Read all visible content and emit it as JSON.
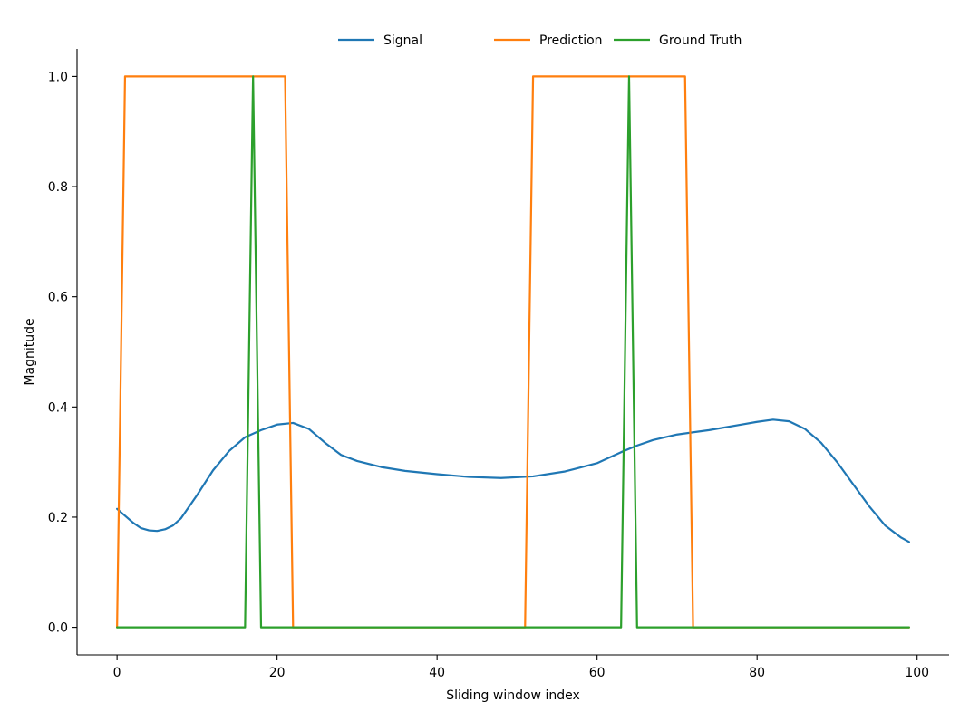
{
  "chart_data": {
    "type": "line",
    "title": "",
    "xlabel": "Sliding window index",
    "ylabel": "Magnitude",
    "xlim": [
      -5,
      104
    ],
    "ylim": [
      -0.05,
      1.05
    ],
    "x_ticks": [
      0,
      20,
      40,
      60,
      80,
      100
    ],
    "x_tick_labels": [
      "0",
      "20",
      "40",
      "60",
      "80",
      "100"
    ],
    "y_ticks": [
      0.0,
      0.2,
      0.4,
      0.6,
      0.8,
      1.0
    ],
    "y_tick_labels": [
      "0.0",
      "0.2",
      "0.4",
      "0.6",
      "0.8",
      "1.0"
    ],
    "grid": false,
    "legend": {
      "placement": "top-center",
      "columns": 3
    },
    "series": [
      {
        "name": "Signal",
        "color": "#1f77b4",
        "x": [
          0,
          2,
          3,
          4,
          5,
          6,
          7,
          8,
          10,
          12,
          14,
          16,
          18,
          20,
          22,
          24,
          26,
          28,
          30,
          33,
          36,
          40,
          44,
          48,
          52,
          56,
          60,
          63,
          65,
          67,
          70,
          74,
          78,
          80,
          82,
          84,
          86,
          88,
          90,
          92,
          94,
          96,
          98,
          99
        ],
        "y": [
          0.215,
          0.19,
          0.18,
          0.176,
          0.175,
          0.178,
          0.185,
          0.198,
          0.24,
          0.285,
          0.32,
          0.345,
          0.358,
          0.368,
          0.371,
          0.36,
          0.335,
          0.313,
          0.302,
          0.291,
          0.284,
          0.278,
          0.273,
          0.271,
          0.274,
          0.283,
          0.298,
          0.318,
          0.33,
          0.34,
          0.35,
          0.358,
          0.368,
          0.373,
          0.377,
          0.374,
          0.36,
          0.335,
          0.3,
          0.26,
          0.22,
          0.185,
          0.163,
          0.155
        ]
      },
      {
        "name": "Prediction",
        "color": "#ff7f0e",
        "x": [
          0,
          1,
          21,
          22,
          51,
          52,
          71,
          72,
          99
        ],
        "y": [
          0,
          1,
          1,
          0,
          0,
          1,
          1,
          0,
          0
        ]
      },
      {
        "name": "Ground Truth",
        "color": "#2ca02c",
        "x": [
          0,
          16,
          17,
          18,
          63,
          64,
          65,
          99
        ],
        "y": [
          0,
          0,
          1,
          0,
          0,
          1,
          0,
          0
        ]
      }
    ]
  }
}
